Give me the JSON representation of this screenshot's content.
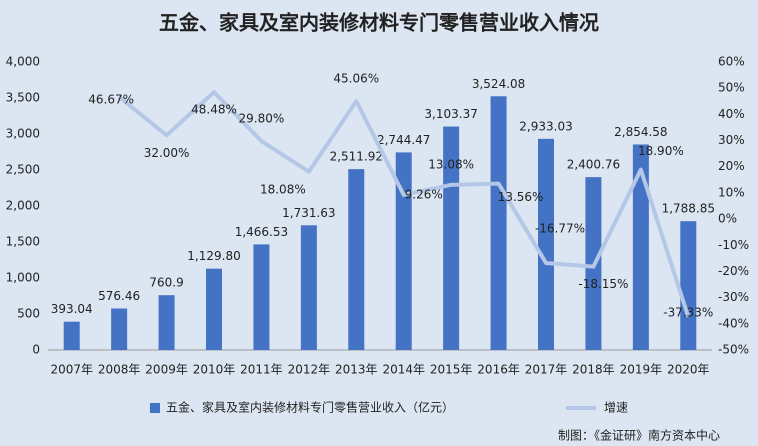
{
  "chart_data": {
    "type": "bar_line",
    "title": "五金、家具及室内装修材料专门零售营业收入情况",
    "categories": [
      "2007年",
      "2008年",
      "2009年",
      "2010年",
      "2011年",
      "2012年",
      "2013年",
      "2014年",
      "2015年",
      "2016年",
      "2017年",
      "2018年",
      "2019年",
      "2020年"
    ],
    "series": [
      {
        "name": "五金、家具及室内装修材料专门零售营业收入（亿元）",
        "type": "bar",
        "color": "#4472c4",
        "values": [
          393.04,
          576.46,
          760.9,
          1129.8,
          1466.53,
          1731.63,
          2511.92,
          2744.47,
          3103.37,
          3524.08,
          2933.03,
          2400.76,
          2854.58,
          1788.85
        ],
        "value_labels": [
          "393.04",
          "576.46",
          "760.9",
          "1,129.80",
          "1,466.53",
          "1,731.63",
          "2,511.92",
          "2,744.47",
          "3,103.37",
          "3,524.08",
          "2,933.03",
          "2,400.76",
          "2,854.58",
          "1,788.85"
        ]
      },
      {
        "name": "增速",
        "type": "line",
        "color": "#b4c7e7",
        "axis": "y2",
        "values": [
          null,
          46.67,
          32.0,
          48.48,
          29.8,
          18.08,
          45.06,
          9.26,
          13.08,
          13.56,
          -16.77,
          -18.15,
          18.9,
          -37.33
        ],
        "value_labels": [
          null,
          "46.67%",
          "32.00%",
          "48.48%",
          "29.80%",
          "18.08%",
          "45.06%",
          "9.26%",
          "13.08%",
          "13.56%",
          "-16.77%",
          "-18.15%",
          "18.90%",
          "-37.33%"
        ]
      }
    ],
    "ylim": [
      0,
      4000
    ],
    "yticks": [
      0,
      500,
      {
        "value": 1000,
        "label": "1,000"
      },
      {
        "value": 1500,
        "label": "1,500"
      },
      {
        "value": 2000,
        "label": "2,000"
      },
      {
        "value": 2500,
        "label": "2,500"
      },
      {
        "value": 3000,
        "label": "3,000"
      },
      {
        "value": 3500,
        "label": "3,500"
      },
      {
        "value": 4000,
        "label": "4,000"
      }
    ],
    "y2lim": [
      -50,
      60
    ],
    "y2ticks": [
      {
        "value": -50,
        "label": "-50%"
      },
      {
        "value": -40,
        "label": "-40%"
      },
      {
        "value": -30,
        "label": "-30%"
      },
      {
        "value": -20,
        "label": "-20%"
      },
      {
        "value": -10,
        "label": "-10%"
      },
      {
        "value": 0,
        "label": "0%"
      },
      {
        "value": 10,
        "label": "10%"
      },
      {
        "value": 20,
        "label": "20%"
      },
      {
        "value": 30,
        "label": "30%"
      },
      {
        "value": 40,
        "label": "40%"
      },
      {
        "value": 50,
        "label": "50%"
      },
      {
        "value": 60,
        "label": "60%"
      }
    ],
    "legend": "bottom",
    "annotation": "制图：《金证研》南方资本中心"
  }
}
